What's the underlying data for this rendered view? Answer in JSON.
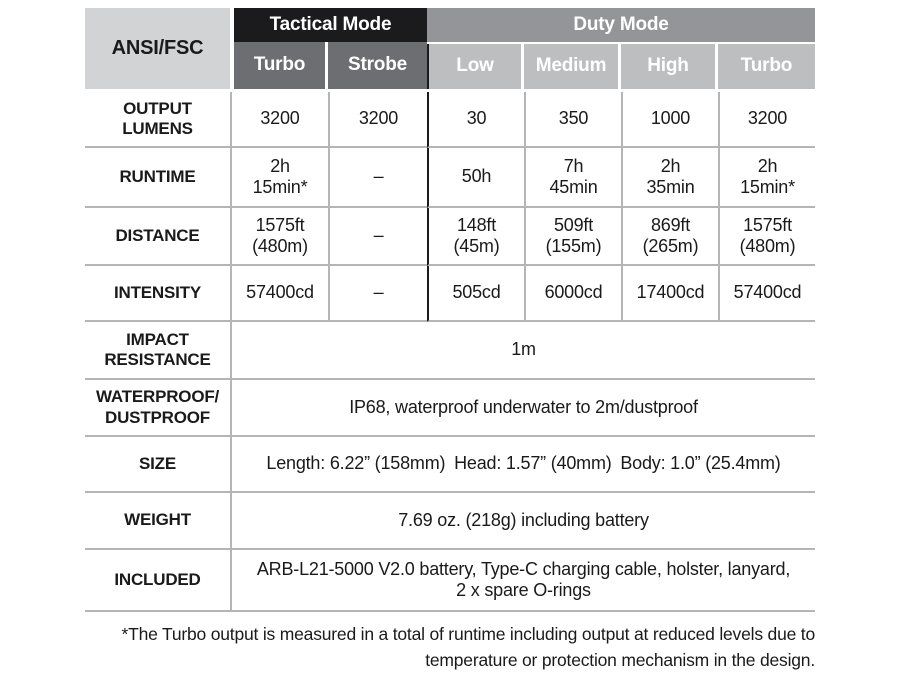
{
  "table": {
    "corner_label": "ANSI/FSC",
    "groups": [
      {
        "label": "Tactical Mode",
        "subcolumns": [
          "Turbo",
          "Strobe"
        ]
      },
      {
        "label": "Duty Mode",
        "subcolumns": [
          "Low",
          "Medium",
          "High",
          "Turbo"
        ]
      }
    ],
    "rows": [
      {
        "label": "OUTPUT\nLUMENS",
        "values": [
          "3200",
          "3200",
          "30",
          "350",
          "1000",
          "3200"
        ]
      },
      {
        "label": "RUNTIME",
        "values": [
          "2h\n15min*",
          "–",
          "50h",
          "7h\n45min",
          "2h\n35min",
          "2h\n15min*"
        ]
      },
      {
        "label": "DISTANCE",
        "values": [
          "1575ft\n(480m)",
          "–",
          "148ft\n(45m)",
          "509ft\n(155m)",
          "869ft\n(265m)",
          "1575ft\n(480m)"
        ]
      },
      {
        "label": "INTENSITY",
        "values": [
          "57400cd",
          "–",
          "505cd",
          "6000cd",
          "17400cd",
          "57400cd"
        ]
      }
    ],
    "merged_rows": [
      {
        "label": "IMPACT\nRESISTANCE",
        "value": "1m"
      },
      {
        "label": "WATERPROOF/\nDUSTPROOF",
        "value": "IP68, waterproof underwater to 2m/dustproof"
      },
      {
        "label": "SIZE",
        "value": "Length: 6.22” (158mm) Head: 1.57” (40mm) Body: 1.0” (25.4mm)"
      },
      {
        "label": "WEIGHT",
        "value": "7.69 oz. (218g) including battery"
      },
      {
        "label": "INCLUDED",
        "value": "ARB-L21-5000 V2.0 battery, Type-C charging cable, holster, lanyard,\n2 x spare O-rings"
      }
    ],
    "footnote_line1": "*The Turbo output is measured in a total of runtime including output at reduced levels due to",
    "footnote_line2": "temperature or protection mechanism in the design."
  },
  "colors": {
    "header_black": "#1b1b1d",
    "header_dark_gray": "#6d6e71",
    "header_mid_gray": "#939598",
    "header_light_gray": "#bcbec0",
    "corner_gray": "#d1d3d4",
    "grid_line": "#b3b5b7",
    "divider_black": "#1b1b1d",
    "text_black": "#1a1a1a"
  }
}
